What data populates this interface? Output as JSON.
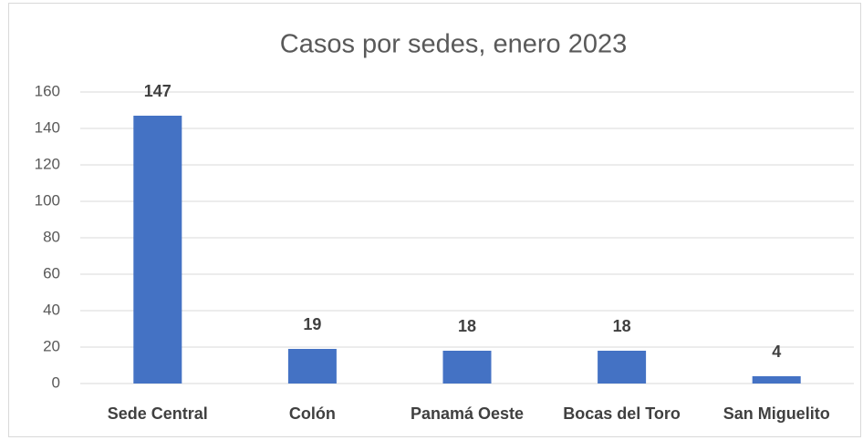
{
  "chart_data": {
    "type": "bar",
    "title": "Casos por sedes, enero 2023",
    "categories": [
      "Sede Central",
      "Colón",
      "Panamá Oeste",
      "Bocas del Toro",
      "San Miguelito"
    ],
    "values": [
      147,
      19,
      18,
      18,
      4
    ],
    "color": "#4472c4",
    "ylim": [
      0,
      160
    ],
    "yticks": [
      0,
      20,
      40,
      60,
      80,
      100,
      120,
      140,
      160
    ],
    "grid": true
  }
}
